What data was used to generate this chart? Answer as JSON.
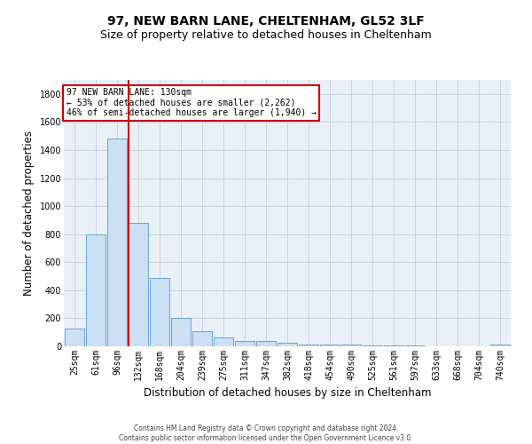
{
  "title": "97, NEW BARN LANE, CHELTENHAM, GL52 3LF",
  "subtitle": "Size of property relative to detached houses in Cheltenham",
  "xlabel": "Distribution of detached houses by size in Cheltenham",
  "ylabel": "Number of detached properties",
  "footer_line1": "Contains HM Land Registry data © Crown copyright and database right 2024.",
  "footer_line2": "Contains public sector information licensed under the Open Government Licence v3.0.",
  "categories": [
    "25sqm",
    "61sqm",
    "96sqm",
    "132sqm",
    "168sqm",
    "204sqm",
    "239sqm",
    "275sqm",
    "311sqm",
    "347sqm",
    "382sqm",
    "418sqm",
    "454sqm",
    "490sqm",
    "525sqm",
    "561sqm",
    "597sqm",
    "633sqm",
    "668sqm",
    "704sqm",
    "740sqm"
  ],
  "bar_heights": [
    125,
    800,
    1480,
    880,
    490,
    205,
    105,
    65,
    40,
    35,
    25,
    15,
    15,
    10,
    5,
    5,
    5,
    3,
    3,
    3,
    15
  ],
  "bar_color": "#cce0f5",
  "bar_edge_color": "#5599cc",
  "red_line_index": 3,
  "red_line_color": "#cc0000",
  "annotation_title": "97 NEW BARN LANE: 130sqm",
  "annotation_line1": "← 53% of detached houses are smaller (2,262)",
  "annotation_line2": "46% of semi-detached houses are larger (1,940) →",
  "annotation_box_color": "#cc0000",
  "ylim": [
    0,
    1900
  ],
  "yticks": [
    0,
    200,
    400,
    600,
    800,
    1000,
    1200,
    1400,
    1600,
    1800
  ],
  "background_color": "#ffffff",
  "plot_bg_color": "#eaf0f8",
  "grid_color": "#c8d0e0",
  "title_fontsize": 10,
  "subtitle_fontsize": 9,
  "axis_label_fontsize": 8.5,
  "tick_fontsize": 7
}
